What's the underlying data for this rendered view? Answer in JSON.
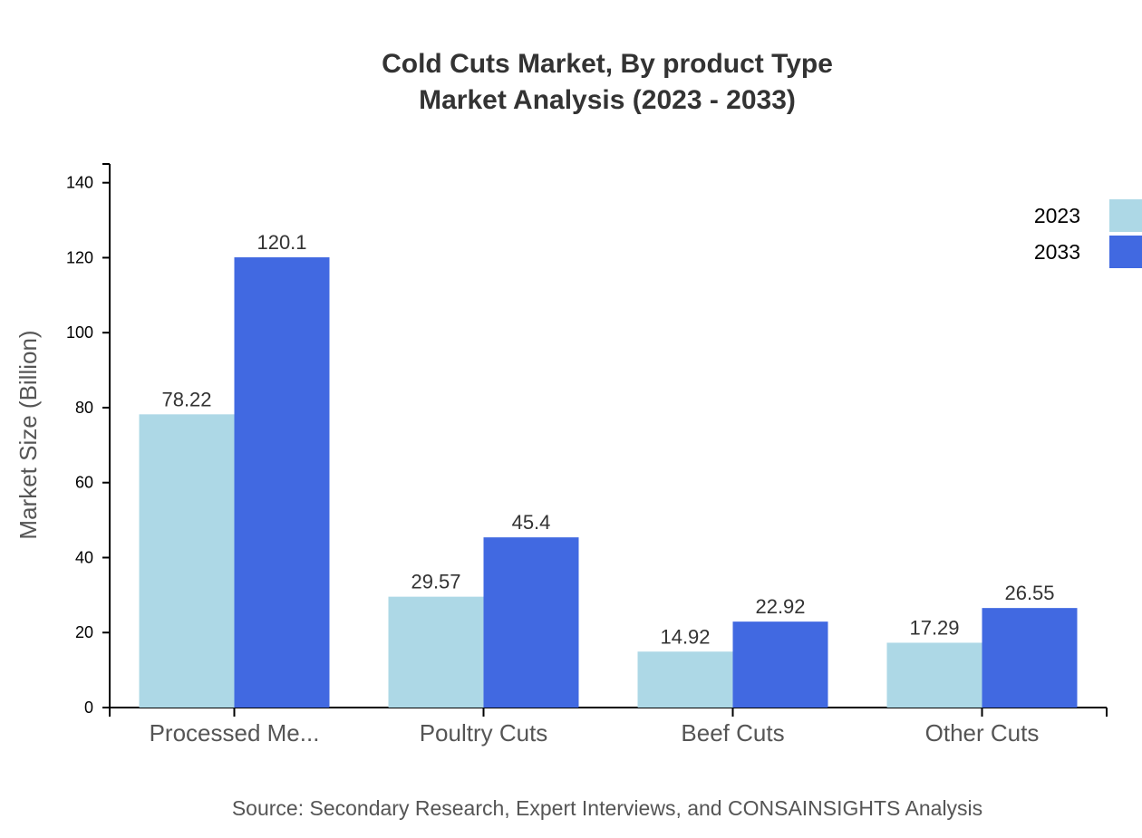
{
  "chart_data": {
    "type": "bar",
    "title": "Cold Cuts Market, By product Type",
    "subtitle": "Market Analysis (2023 - 2033)",
    "xlabel": "",
    "ylabel": "Market Size (Billion)",
    "categories": [
      "Processed Me...",
      "Poultry Cuts",
      "Beef Cuts",
      "Other Cuts"
    ],
    "series": [
      {
        "name": "2023",
        "color": "#ADD8E6",
        "values": [
          78.22,
          29.57,
          14.92,
          17.29
        ]
      },
      {
        "name": "2033",
        "color": "#4169E1",
        "values": [
          120.1,
          45.4,
          22.92,
          26.55
        ]
      }
    ],
    "ylim": [
      0,
      145
    ],
    "yticks": [
      0,
      20,
      40,
      60,
      80,
      100,
      120,
      140
    ],
    "grid": false,
    "legend": "top-right",
    "source": "Source: Secondary Research, Expert Interviews, and CONSAINSIGHTS Analysis"
  }
}
